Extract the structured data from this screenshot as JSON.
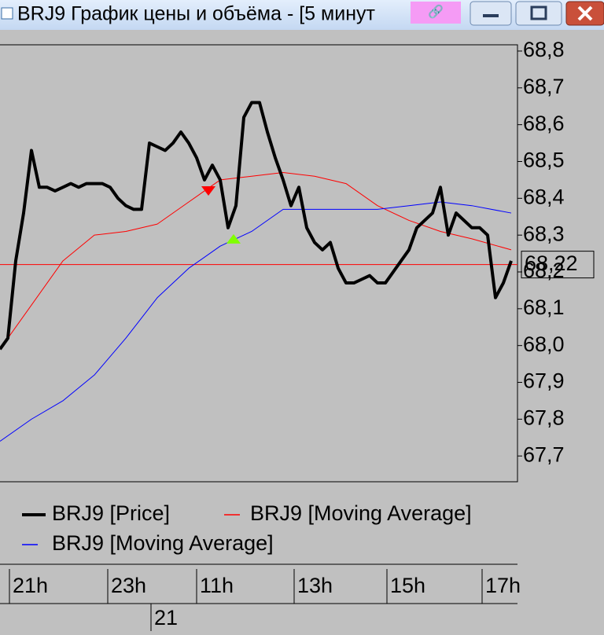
{
  "window": {
    "title": "BRJ9 График цены и объёма - [5 минут"
  },
  "chart_data": {
    "type": "line",
    "series": [
      {
        "name": "BRJ9 [Price]",
        "color": "#000000",
        "width": 4,
        "x": [
          0,
          1,
          2,
          3,
          4,
          5,
          6,
          7,
          8,
          9,
          10,
          11,
          12,
          13,
          14,
          15,
          16,
          17,
          18,
          19,
          20,
          21,
          22,
          23,
          24,
          25,
          26,
          27,
          28,
          29,
          30,
          31,
          32,
          33,
          34,
          35,
          36,
          37,
          38,
          39,
          40,
          41,
          42,
          43,
          44,
          45,
          46,
          47,
          48,
          49,
          50,
          51,
          52,
          53,
          54,
          55,
          56,
          57,
          58,
          59,
          60,
          61,
          62,
          63,
          64,
          65
        ],
        "values": [
          67.99,
          68.02,
          68.23,
          68.36,
          68.53,
          68.43,
          68.43,
          68.42,
          68.43,
          68.44,
          68.43,
          68.44,
          68.44,
          68.44,
          68.43,
          68.4,
          68.38,
          68.37,
          68.37,
          68.55,
          68.54,
          68.53,
          68.55,
          68.58,
          68.55,
          68.51,
          68.45,
          68.49,
          68.45,
          68.32,
          68.38,
          68.62,
          68.66,
          68.66,
          68.58,
          68.51,
          68.45,
          68.38,
          68.43,
          68.32,
          68.28,
          68.26,
          68.28,
          68.21,
          68.17,
          68.17,
          68.18,
          68.19,
          68.17,
          68.17,
          68.2,
          68.23,
          68.26,
          68.32,
          68.34,
          68.36,
          68.43,
          68.3,
          68.36,
          68.34,
          68.32,
          68.32,
          68.3,
          68.13,
          68.17,
          68.23
        ]
      },
      {
        "name": "BRJ9 [Moving Average]",
        "color": "#ff0000",
        "width": 1,
        "x": [
          0,
          4,
          8,
          12,
          16,
          20,
          24,
          28,
          32,
          36,
          40,
          44,
          48,
          52,
          56,
          60,
          65
        ],
        "values": [
          67.99,
          68.11,
          68.23,
          68.3,
          68.31,
          68.33,
          68.39,
          68.45,
          68.46,
          68.47,
          68.46,
          68.44,
          68.38,
          68.34,
          68.31,
          68.29,
          68.26
        ]
      },
      {
        "name": "BRJ9 [Moving Average]",
        "color": "#0000ff",
        "width": 1,
        "x": [
          0,
          4,
          8,
          12,
          16,
          20,
          24,
          28,
          32,
          36,
          40,
          44,
          48,
          52,
          56,
          60,
          65
        ],
        "values": [
          67.74,
          67.8,
          67.85,
          67.92,
          68.02,
          68.13,
          68.21,
          68.27,
          68.31,
          68.37,
          68.37,
          68.37,
          68.37,
          68.38,
          68.39,
          68.38,
          68.36
        ]
      }
    ],
    "markers": [
      {
        "x": 26.5,
        "value": 68.42,
        "color": "#ff0000",
        "direction": "down"
      },
      {
        "x": 29.7,
        "value": 68.29,
        "color": "#80ff00",
        "direction": "up"
      }
    ],
    "last": {
      "value": 68.22,
      "label": "68,22",
      "color": "#ff0000"
    },
    "xlim": [
      0,
      65.8
    ],
    "ylim": [
      67.63,
      68.817
    ],
    "yticks": [
      {
        "value": 67.7,
        "label": "67,7"
      },
      {
        "value": 67.8,
        "label": "67,8"
      },
      {
        "value": 67.9,
        "label": "67,9"
      },
      {
        "value": 68.0,
        "label": "68,0"
      },
      {
        "value": 68.1,
        "label": "68,1"
      },
      {
        "value": 68.2,
        "label": "68,2"
      },
      {
        "value": 68.3,
        "label": "68,3"
      },
      {
        "value": 68.4,
        "label": "68,4"
      },
      {
        "value": 68.5,
        "label": "68,5"
      },
      {
        "value": 68.6,
        "label": "68,6"
      },
      {
        "value": 68.7,
        "label": "68,7"
      },
      {
        "value": 68.8,
        "label": "68,8"
      }
    ],
    "xticks": [
      {
        "value": 1.2,
        "label": "21h"
      },
      {
        "value": 13.7,
        "label": "23h"
      },
      {
        "value": 25.0,
        "label": "11h"
      },
      {
        "value": 37.4,
        "label": "13h"
      },
      {
        "value": 49.2,
        "label": "15h"
      },
      {
        "value": 61.3,
        "label": "17h"
      }
    ],
    "date_ticks": [
      {
        "value": 19.2,
        "label": "21"
      }
    ]
  }
}
